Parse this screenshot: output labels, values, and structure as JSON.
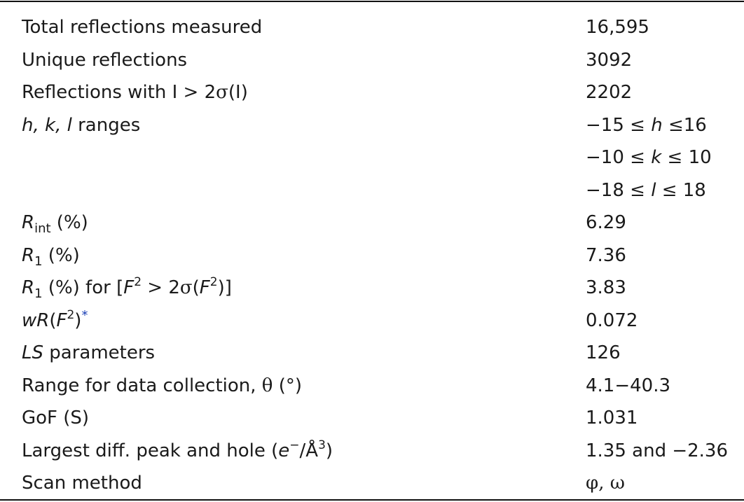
{
  "table": {
    "rows": [
      {
        "label": "Total reflections measured",
        "value": "16,595"
      },
      {
        "label": "Unique reflections",
        "value": "3092"
      },
      {
        "label_prefix": "Reflections with I ",
        "label_op": ">",
        "label_mid": " 2",
        "label_sigma": "σ",
        "label_suffix": "(I)",
        "value": "2202"
      },
      {
        "label_italic": "h, k, l",
        "label_suffix": " ranges",
        "value_prefix": "−15 ",
        "value_op": "≤",
        "value_var": "h",
        "value_op2": "≤",
        "value_suffix": "16"
      },
      {
        "value_prefix": "−10 ",
        "value_op": "≤",
        "value_var": "k",
        "value_op2": "≤",
        "value_suffix": " 10"
      },
      {
        "value_prefix": "−18 ",
        "value_op": "≤",
        "value_var": "l",
        "value_op2": "≤",
        "value_suffix": " 18"
      },
      {
        "label_italic": "R",
        "label_sub": "int",
        "label_suffix": " (%)",
        "value": "6.29"
      },
      {
        "label_italic": "R",
        "label_sub": "1",
        "label_suffix": " (%)",
        "value": "7.36"
      },
      {
        "label_italic": "R",
        "label_sub": "1",
        "label_mid": " (%) for [",
        "label_var": "F",
        "label_sup": "2",
        "label_op": " > ",
        "label_two": "2",
        "label_sigma": "σ",
        "label_paren_open": "(",
        "label_var2": "F",
        "label_sup2": "2",
        "label_paren_close": ")]",
        "value": "3.83"
      },
      {
        "label_italic": "wR",
        "label_open": "(",
        "label_var": "F",
        "label_sup": "2",
        "label_close": ")",
        "label_mark": "*",
        "value": "0.072"
      },
      {
        "label_italic": "LS",
        "label_suffix": " parameters",
        "value": "126"
      },
      {
        "label_prefix": "Range for data collection, ",
        "label_theta": "θ",
        "label_suffix": " (°)",
        "value": "4.1−40.3"
      },
      {
        "label": "GoF (S)",
        "value": "1.031"
      },
      {
        "label_prefix": "Largest diff. peak and hole (",
        "label_var": "e",
        "label_sup": "−",
        "label_mid": "/Å",
        "label_sup2": "3",
        "label_suffix": ")",
        "value": "1.35 and −2.36"
      },
      {
        "label": "Scan method",
        "value": "φ, ω"
      }
    ]
  }
}
